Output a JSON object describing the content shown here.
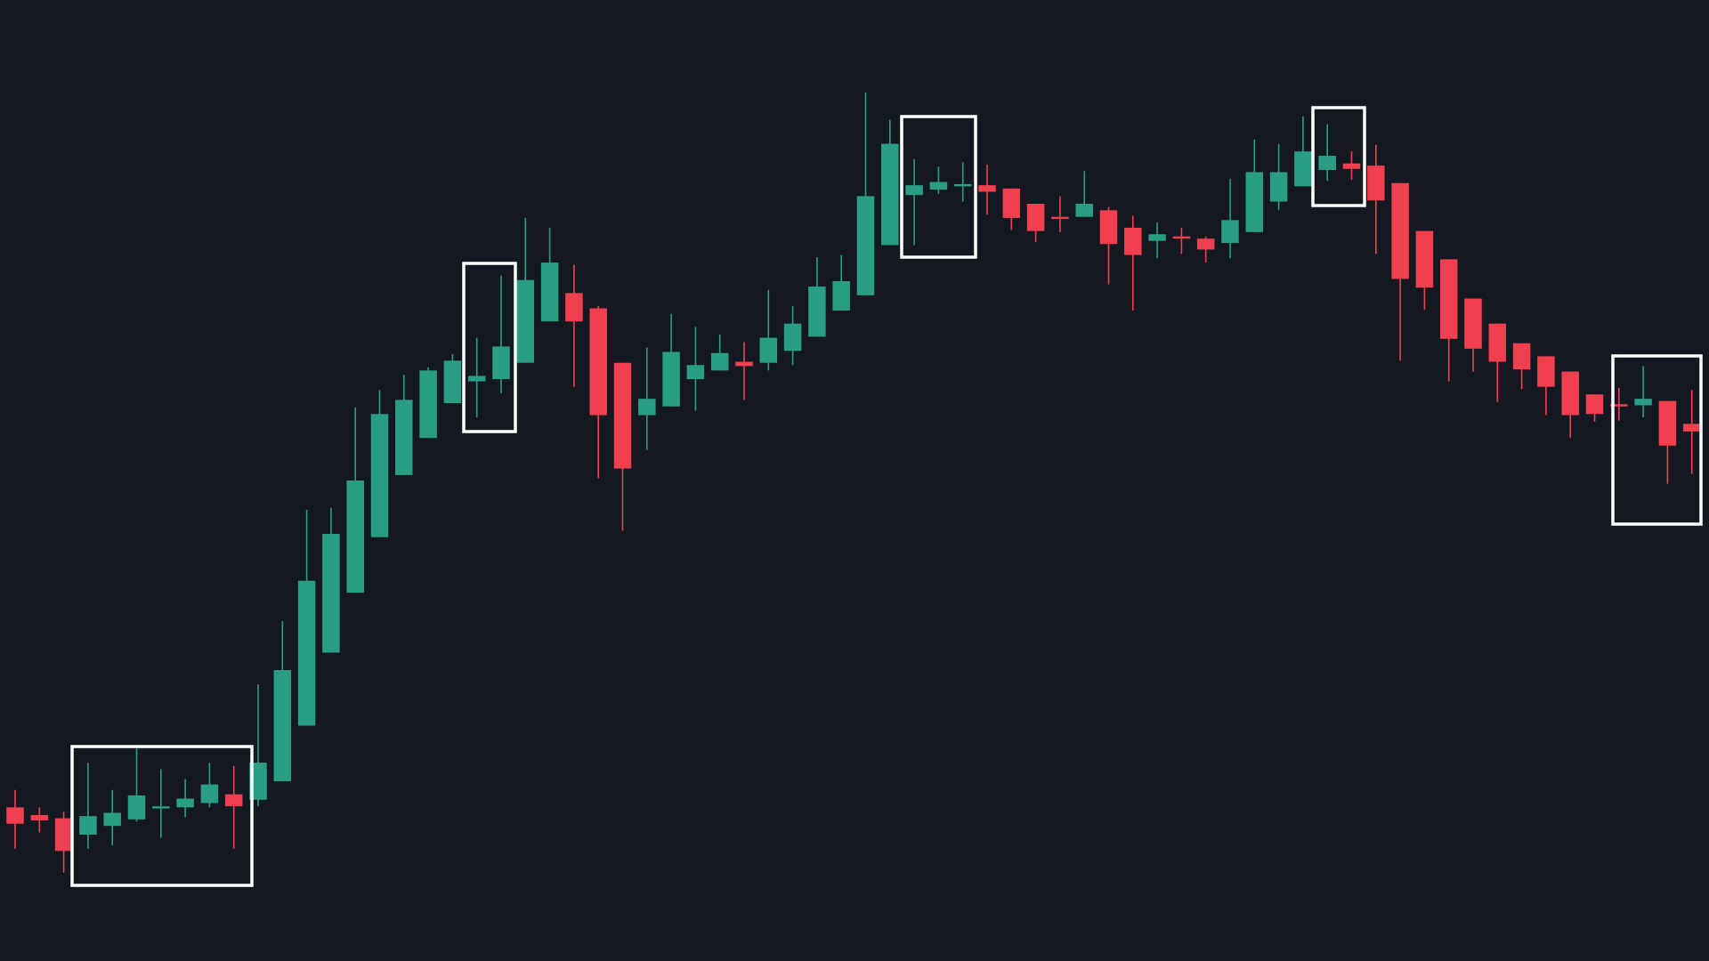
{
  "chart_data": {
    "type": "candlestick",
    "up_color": "#299e84",
    "down_color": "#f0404f",
    "ylim": [
      0,
      882
    ],
    "open": [
      141,
      134,
      131,
      116,
      124,
      130,
      140,
      141,
      145,
      153,
      148,
      165,
      216,
      283,
      338,
      389,
      446,
      480,
      512,
      532,
      534,
      549,
      587,
      613,
      599,
      549,
      501,
      509,
      534,
      542,
      550,
      549,
      560,
      573,
      597,
      611,
      657,
      703,
      708,
      711,
      712,
      709,
      695,
      683,
      683,
      689,
      673,
      661,
      665,
      663,
      659,
      669,
      697,
      711,
      726,
      732,
      730,
      714,
      670,
      644,
      608,
      585,
      567,
      555,
      541,
      520,
      511,
      510,
      514,
      493
    ],
    "high": [
      157,
      141,
      137,
      182,
      157,
      195,
      176,
      167,
      182,
      179,
      254,
      312,
      414,
      416,
      508,
      524,
      538,
      545,
      557,
      572,
      629,
      682,
      673,
      639,
      601,
      549,
      563,
      594,
      582,
      575,
      568,
      616,
      601,
      646,
      648,
      797,
      772,
      736,
      729,
      733,
      731,
      709,
      695,
      702,
      725,
      692,
      684,
      678,
      673,
      665,
      718,
      754,
      750,
      775,
      768,
      743,
      749,
      714,
      670,
      644,
      608,
      585,
      567,
      555,
      541,
      520,
      526,
      546,
      514,
      524
    ],
    "low": [
      103,
      118,
      81,
      103,
      106,
      128,
      113,
      132,
      141,
      103,
      142,
      165,
      216,
      283,
      338,
      389,
      446,
      480,
      512,
      499,
      521,
      549,
      587,
      527,
      443,
      395,
      469,
      509,
      505,
      542,
      515,
      542,
      547,
      573,
      597,
      611,
      657,
      657,
      704,
      697,
      685,
      671,
      660,
      669,
      683,
      621,
      597,
      645,
      649,
      641,
      645,
      669,
      689,
      711,
      716,
      717,
      649,
      551,
      598,
      532,
      541,
      513,
      525,
      501,
      480,
      495,
      496,
      499,
      438,
      447
    ],
    "close": [
      126,
      129,
      101,
      133,
      136,
      152,
      142,
      149,
      162,
      142,
      182,
      267,
      349,
      392,
      441,
      502,
      515,
      542,
      551,
      537,
      564,
      625,
      641,
      587,
      501,
      452,
      516,
      559,
      547,
      558,
      546,
      572,
      585,
      619,
      624,
      702,
      750,
      712,
      715,
      713,
      706,
      682,
      670,
      681,
      695,
      658,
      648,
      667,
      663,
      653,
      680,
      724,
      724,
      743,
      739,
      727,
      698,
      626,
      618,
      571,
      562,
      550,
      543,
      527,
      501,
      502,
      509,
      516,
      473,
      486
    ]
  }
}
